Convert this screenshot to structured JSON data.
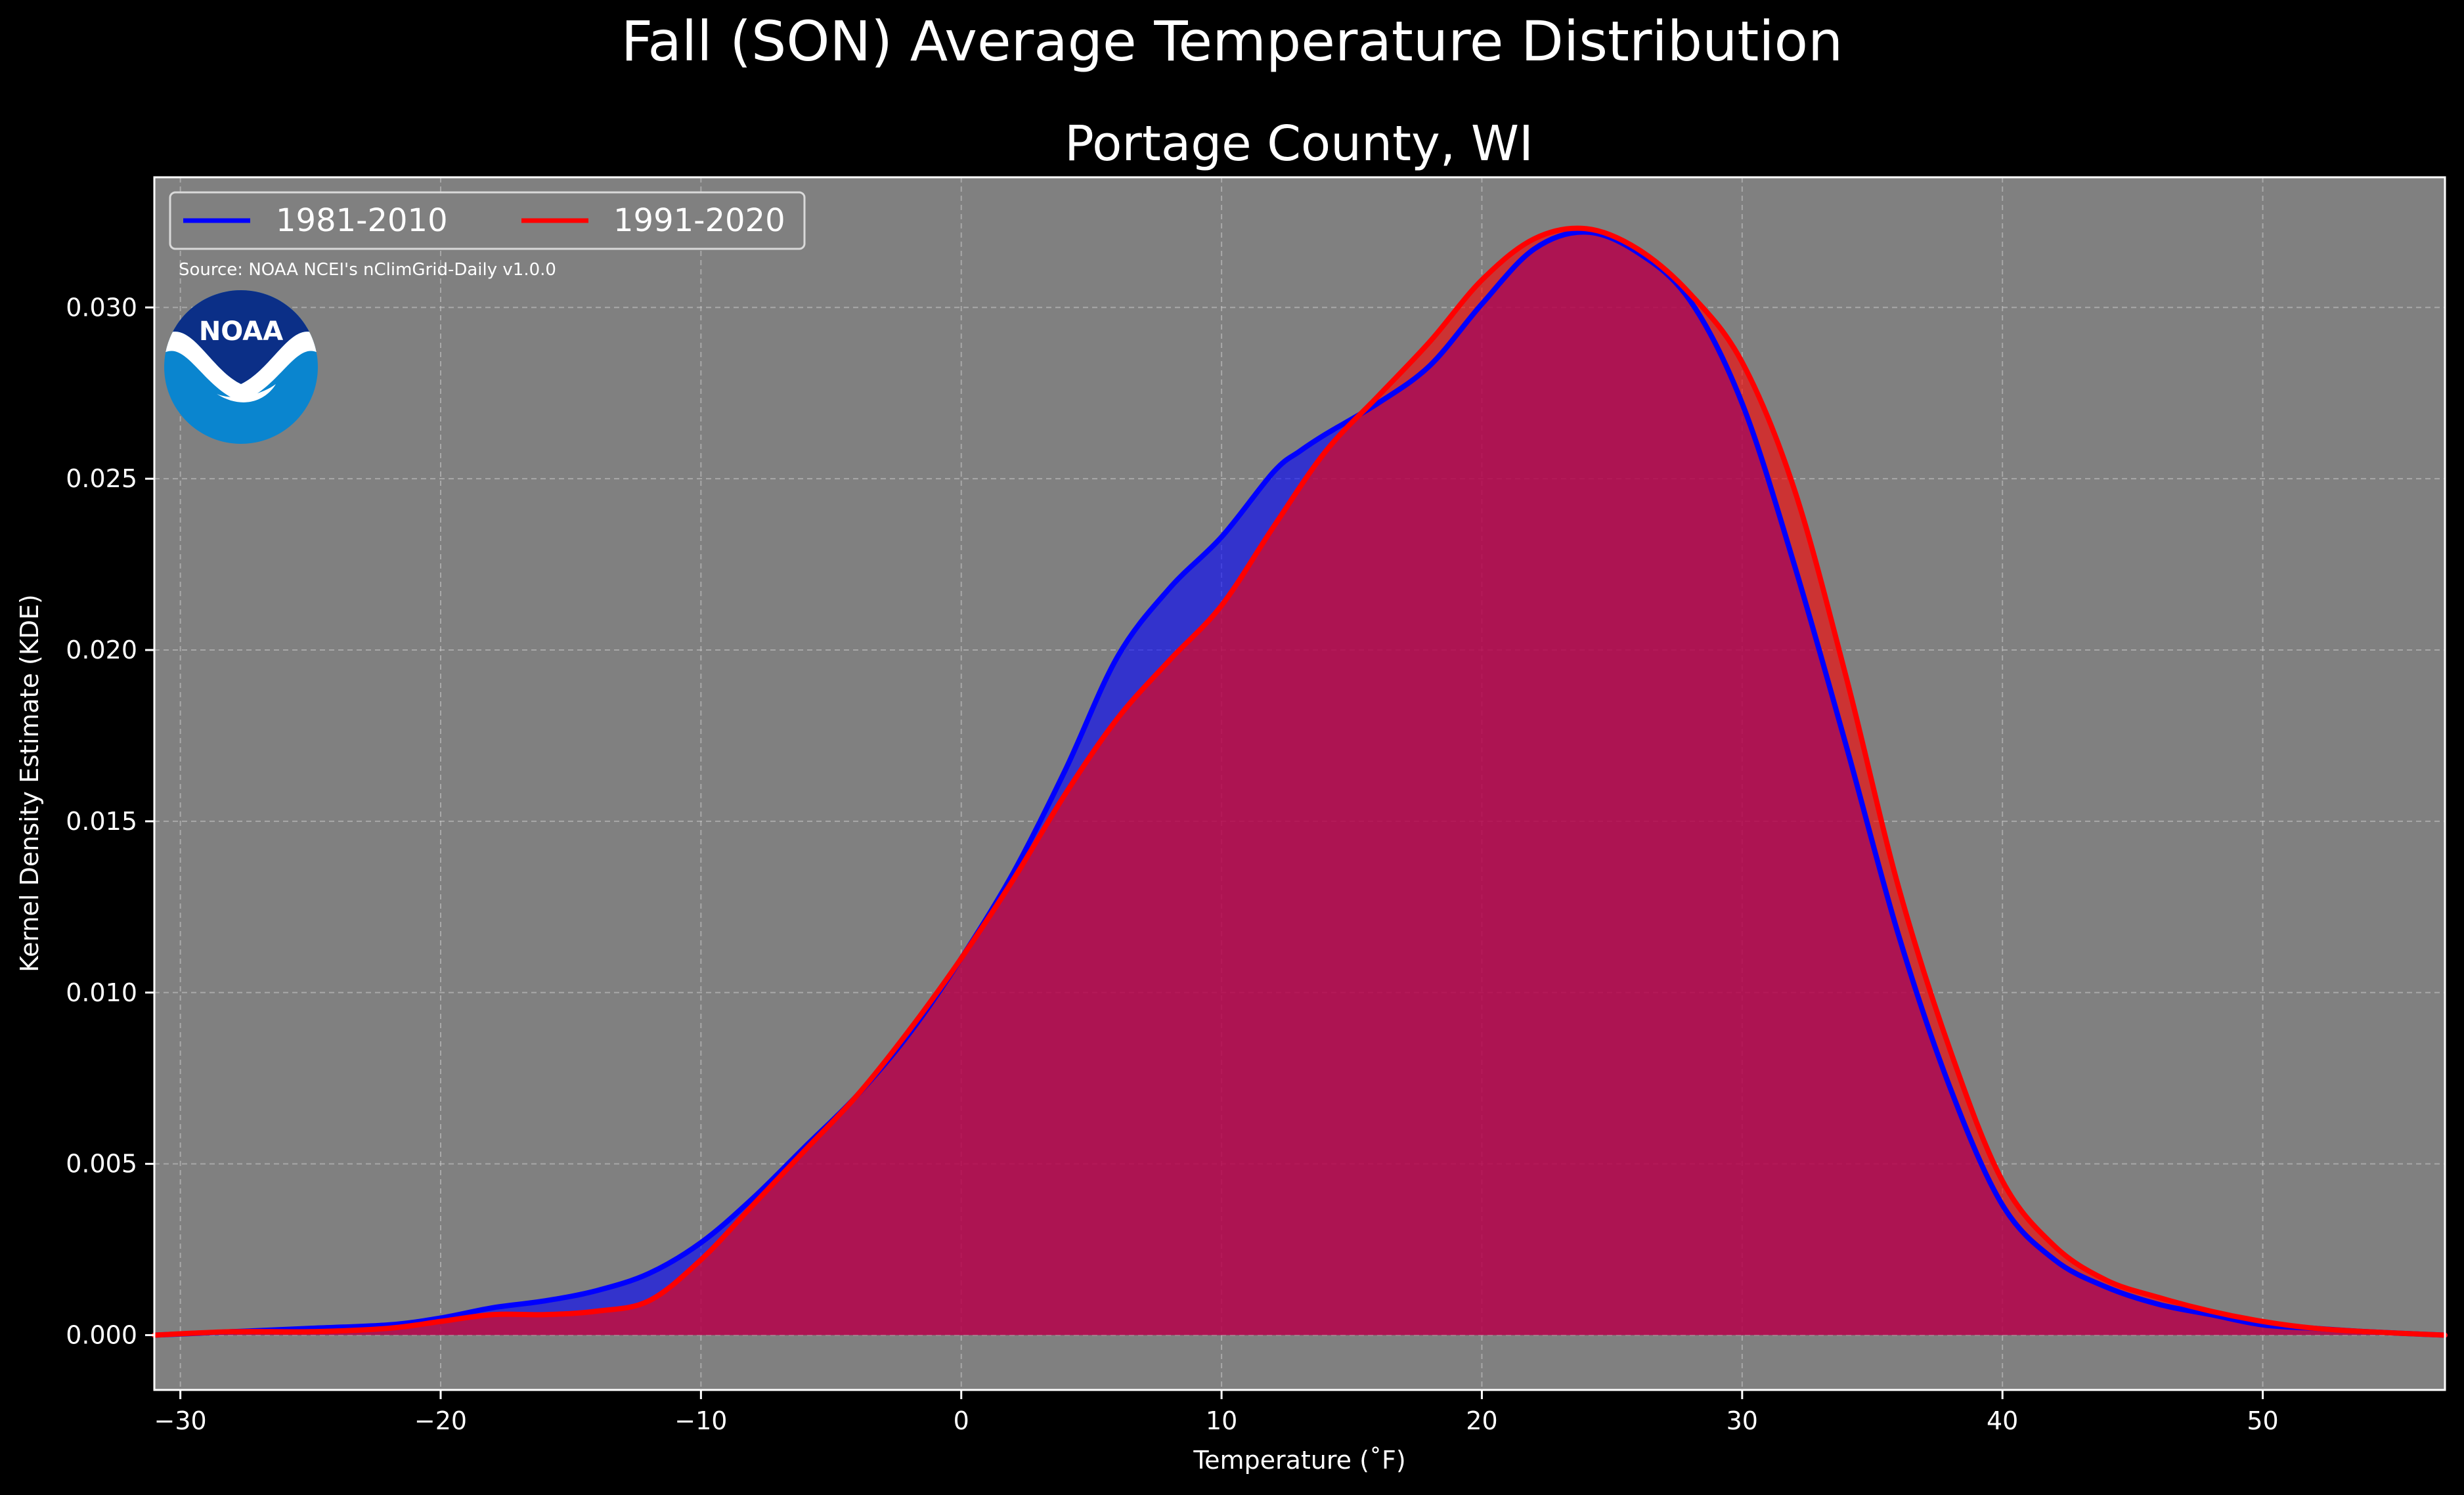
{
  "chart_data": {
    "type": "area",
    "suptitle": "Fall (SON) Average Temperature Distribution",
    "title": "Portage County, WI",
    "xlabel": "Temperature ($^\\circ$F)",
    "xlabel_display": "Temperature (˚F)",
    "ylabel": "Kernel Density Estimate (KDE)",
    "xlim": [
      -31,
      57
    ],
    "ylim": [
      -0.0016,
      0.0338
    ],
    "xticks": [
      -30,
      -20,
      -10,
      0,
      10,
      20,
      30,
      40,
      50
    ],
    "xtick_labels": [
      "−30",
      "−20",
      "−10",
      "0",
      "10",
      "20",
      "30",
      "40",
      "50"
    ],
    "yticks": [
      0.0,
      0.005,
      0.01,
      0.015,
      0.02,
      0.025,
      0.03
    ],
    "ytick_labels": [
      "0.000",
      "0.005",
      "0.010",
      "0.015",
      "0.020",
      "0.025",
      "0.030"
    ],
    "grid": true,
    "legend_position": "top-left",
    "source": "Source: NOAA NCEI's nClimGrid-Daily v1.0.0",
    "logo_text": "NOAA",
    "colors": {
      "background": "#000000",
      "axes_background": "#808080",
      "series1": "#0000ff",
      "series2": "#ff0000",
      "overlap_fill": "#9e1f5c"
    },
    "series": [
      {
        "name": "1981-2010",
        "color": "#0000ff",
        "x": [
          -31,
          -28,
          -25,
          -22,
          -20,
          -18,
          -16,
          -14,
          -12,
          -10,
          -8,
          -6,
          -4,
          -2,
          0,
          2,
          4,
          6,
          8,
          10,
          12,
          13,
          14,
          16,
          18,
          20,
          22,
          24,
          26,
          28,
          30,
          32,
          34,
          36,
          38,
          40,
          42,
          44,
          46,
          48,
          50,
          52,
          54,
          57
        ],
        "values": [
          0.0,
          0.0001,
          0.0002,
          0.0003,
          0.0005,
          0.0008,
          0.001,
          0.0013,
          0.0018,
          0.0027,
          0.004,
          0.0055,
          0.007,
          0.0088,
          0.011,
          0.0135,
          0.0165,
          0.0198,
          0.0218,
          0.0233,
          0.0252,
          0.0258,
          0.0263,
          0.0272,
          0.0283,
          0.0301,
          0.0317,
          0.0322,
          0.0316,
          0.0302,
          0.0272,
          0.0225,
          0.0172,
          0.0117,
          0.0072,
          0.0038,
          0.0022,
          0.0014,
          0.0009,
          0.0006,
          0.0003,
          0.0002,
          0.0001,
          0.0
        ]
      },
      {
        "name": "1991-2020",
        "color": "#ff0000",
        "x": [
          -31,
          -28,
          -25,
          -22,
          -20,
          -18,
          -16,
          -14,
          -12,
          -10,
          -8,
          -6,
          -4,
          -2,
          0,
          2,
          4,
          6,
          8,
          10,
          12,
          14,
          16,
          18,
          20,
          22,
          24,
          26,
          28,
          30,
          32,
          34,
          36,
          38,
          40,
          42,
          44,
          46,
          48,
          50,
          52,
          54,
          57
        ],
        "values": [
          0.0,
          0.0001,
          0.0001,
          0.0002,
          0.0004,
          0.0006,
          0.0006,
          0.0007,
          0.001,
          0.0022,
          0.0038,
          0.0054,
          0.007,
          0.0089,
          0.011,
          0.0133,
          0.0158,
          0.018,
          0.0197,
          0.0213,
          0.0236,
          0.0258,
          0.0274,
          0.029,
          0.0308,
          0.032,
          0.0323,
          0.0317,
          0.0304,
          0.0284,
          0.0247,
          0.0192,
          0.0131,
          0.0083,
          0.0045,
          0.0026,
          0.0016,
          0.0011,
          0.0007,
          0.0004,
          0.0002,
          0.0001,
          0.0
        ]
      }
    ]
  }
}
